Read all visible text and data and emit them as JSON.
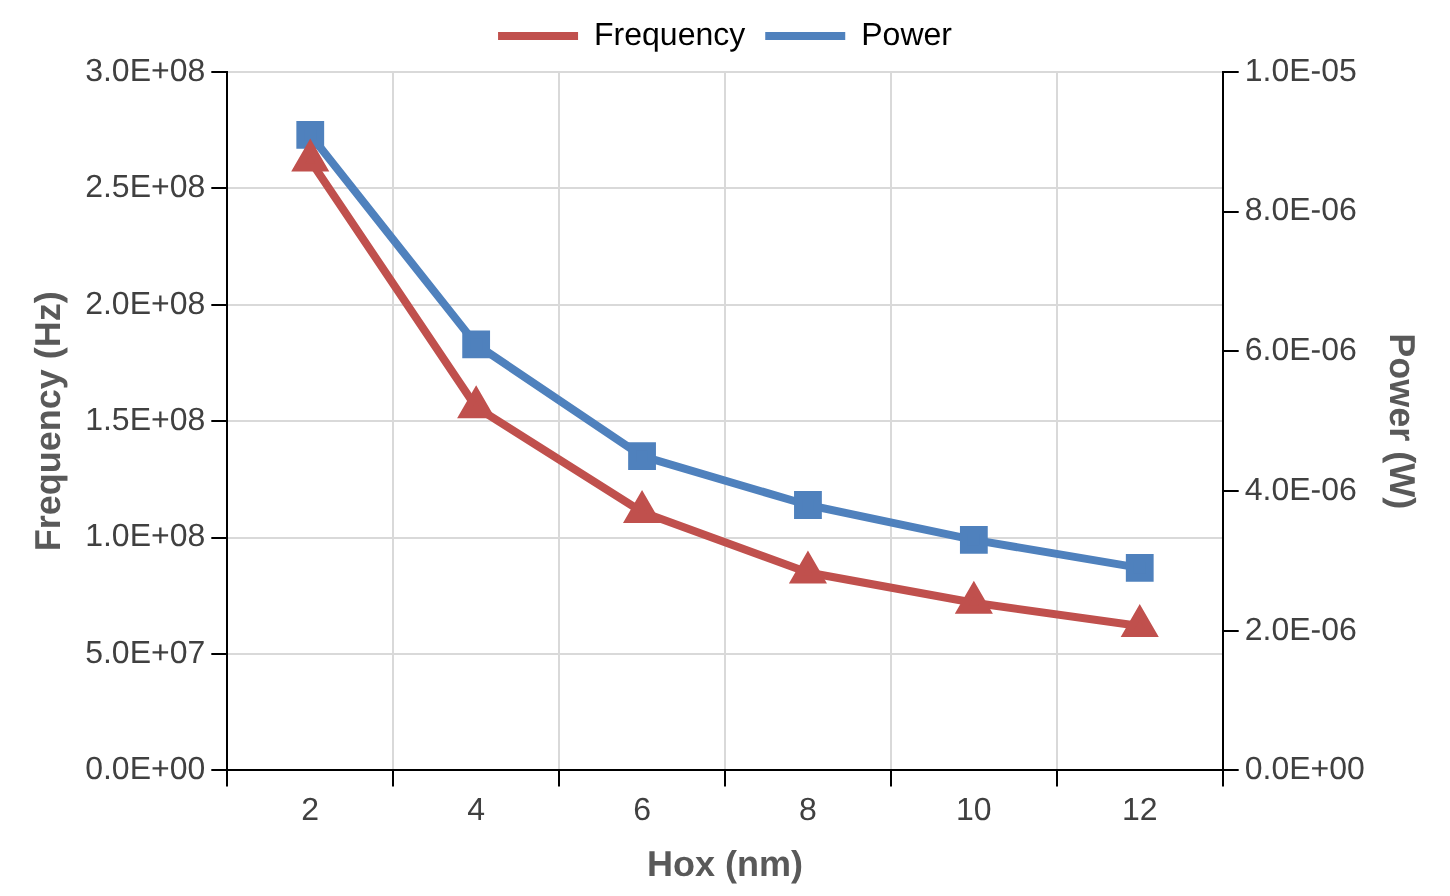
{
  "chart_data": {
    "type": "line",
    "xlabel": "Hox (nm)",
    "ylabel": "Frequency (Hz)",
    "y2label": "Power (W)",
    "categories": [
      "2",
      "4",
      "6",
      "8",
      "10",
      "12"
    ],
    "series": [
      {
        "name": "Frequency",
        "color": "#c0504d",
        "marker": "triangle",
        "values": [
          262000000.0,
          156000000.0,
          111000000.0,
          85000000.0,
          72000000.0,
          62000000.0
        ]
      },
      {
        "name": "Power",
        "color": "#4f81bd",
        "marker": "square",
        "axis": "y2",
        "values": [
          9.1e-06,
          6.1e-06,
          4.5e-06,
          3.8e-06,
          3.3e-06,
          2.9e-06
        ]
      }
    ],
    "ylim": [
      0,
      300000000.0
    ],
    "yticks": [
      {
        "value": 0,
        "label": "0.0E+00"
      },
      {
        "value": 50000000.0,
        "label": "5.0E+07"
      },
      {
        "value": 100000000.0,
        "label": "1.0E+08"
      },
      {
        "value": 150000000.0,
        "label": "1.5E+08"
      },
      {
        "value": 200000000.0,
        "label": "2.0E+08"
      },
      {
        "value": 250000000.0,
        "label": "2.5E+08"
      },
      {
        "value": 300000000.0,
        "label": "3.0E+08"
      }
    ],
    "y2lim": [
      0,
      1e-05
    ],
    "y2ticks": [
      {
        "value": 0,
        "label": "0.0E+00"
      },
      {
        "value": 2e-06,
        "label": "2.0E-06"
      },
      {
        "value": 4e-06,
        "label": "4.0E-06"
      },
      {
        "value": 6e-06,
        "label": "6.0E-06"
      },
      {
        "value": 8e-06,
        "label": "8.0E-06"
      },
      {
        "value": 1e-05,
        "label": "1.0E-05"
      }
    ],
    "grid": true,
    "legend": "top",
    "line_style": "solid"
  }
}
